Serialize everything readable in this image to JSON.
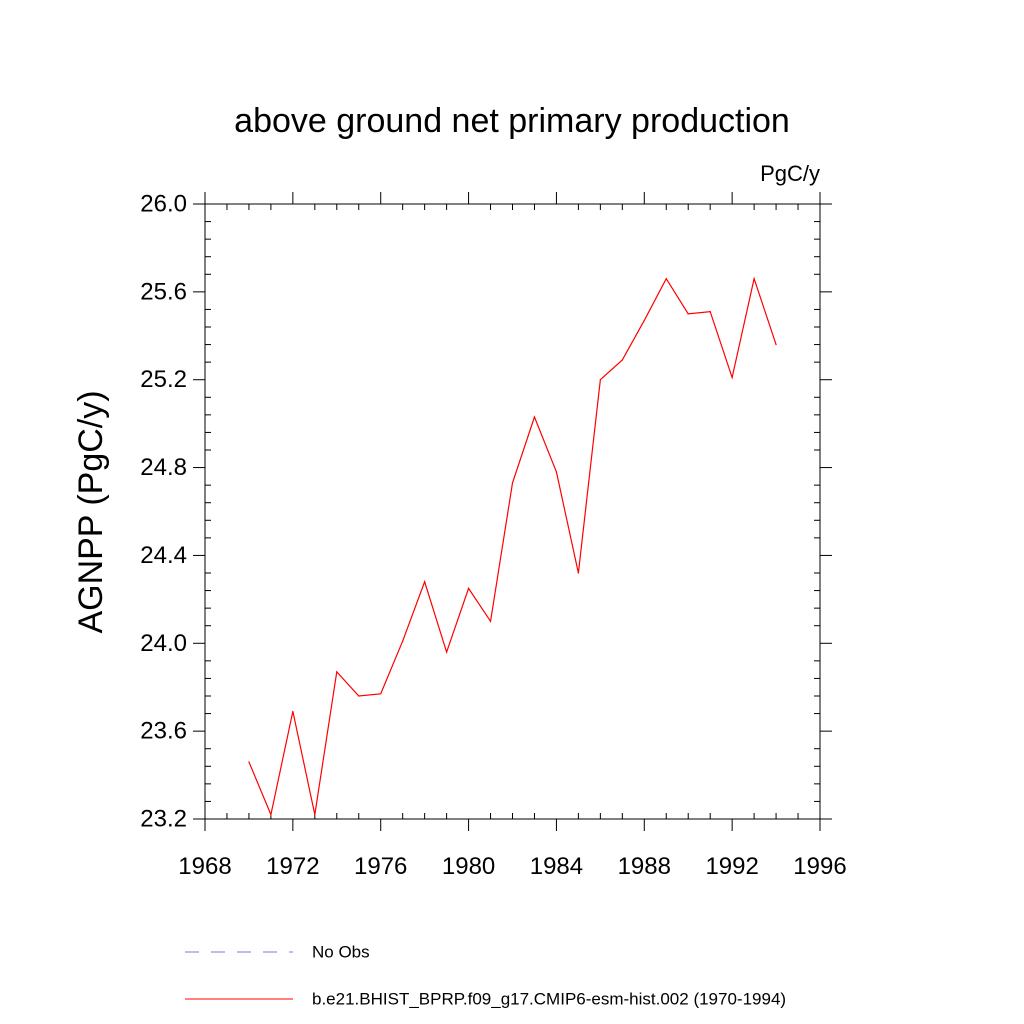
{
  "chart_data": {
    "type": "line",
    "title": "above ground net primary production",
    "units_label": "PgC/y",
    "ylabel": "AGNPP  (PgC/y)",
    "xlabel": "",
    "xlim": [
      1968,
      1996
    ],
    "ylim": [
      23.2,
      26.0
    ],
    "x_ticks": [
      1968,
      1972,
      1976,
      1980,
      1984,
      1988,
      1992,
      1996
    ],
    "x_tick_labels": [
      "1968",
      "1972",
      "1976",
      "1980",
      "1984",
      "1988",
      "1992",
      "1996"
    ],
    "y_ticks": [
      23.2,
      23.6,
      24.0,
      24.4,
      24.8,
      25.2,
      25.6,
      26.0
    ],
    "y_tick_labels": [
      "23.2",
      "23.6",
      "24.0",
      "24.4",
      "24.8",
      "25.2",
      "25.6",
      "26.0"
    ],
    "grid": false,
    "legend_position": "bottom",
    "series": [
      {
        "name": "b.e21.BHIST_BPRP.f09_g17.CMIP6-esm-hist.002 (1970-1994)",
        "color": "#ff0000",
        "style": "solid",
        "x": [
          1970,
          1971,
          1972,
          1973,
          1974,
          1975,
          1976,
          1977,
          1978,
          1979,
          1980,
          1981,
          1982,
          1983,
          1984,
          1985,
          1986,
          1987,
          1988,
          1989,
          1990,
          1991,
          1992,
          1993,
          1994
        ],
        "y": [
          23.46,
          23.22,
          23.69,
          23.22,
          23.87,
          23.76,
          23.77,
          24.01,
          24.28,
          23.96,
          24.25,
          24.1,
          24.73,
          25.03,
          24.78,
          24.32,
          25.2,
          25.29,
          25.47,
          25.66,
          25.5,
          25.51,
          25.21,
          25.66,
          25.36
        ]
      }
    ],
    "legend": [
      {
        "label": "No Obs",
        "color": "#7b7bd6",
        "style": "dashed"
      },
      {
        "label": "b.e21.BHIST_BPRP.f09_g17.CMIP6-esm-hist.002 (1970-1994)",
        "color": "#ff0000",
        "style": "solid"
      }
    ]
  }
}
